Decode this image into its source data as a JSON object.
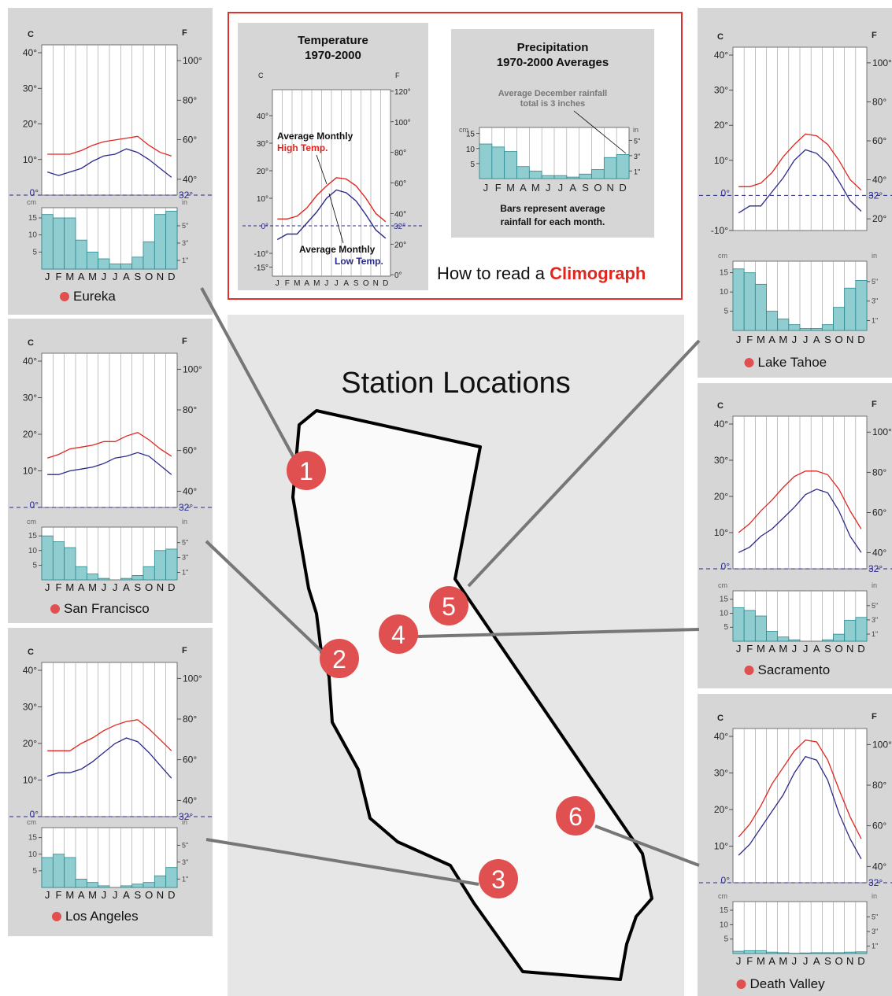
{
  "legend": {
    "label_c": "C",
    "label_f": "F",
    "label_cm": "cm",
    "label_in": "in",
    "freeze_c": "0°",
    "freeze_f": "32°",
    "c_ticks": [
      "-10°",
      "10°",
      "20°",
      "30°",
      "40°"
    ],
    "f_ticks": [
      "20°",
      "40°",
      "60°",
      "80°",
      "100°",
      "120°"
    ],
    "cm_ticks": [
      "5",
      "10",
      "15"
    ],
    "in_ticks": [
      "1\"",
      "3\"",
      "5\""
    ],
    "months": [
      "J",
      "F",
      "M",
      "A",
      "M",
      "J",
      "J",
      "A",
      "S",
      "O",
      "N",
      "D"
    ]
  },
  "colors": {
    "high": "#e0261e",
    "low": "#2a2a8a",
    "bars": "#8fcdd0",
    "bar_stroke": "#2a8a8f",
    "badge": "#e05050",
    "frame": "#e03030",
    "accent_text": "#e0261e"
  },
  "chart_data": [
    {
      "type": "line",
      "station": "Eureka",
      "number": "1",
      "series": [
        {
          "name": "High",
          "values": [
            11.5,
            11.5,
            11.5,
            12.5,
            14,
            15,
            15.5,
            16,
            16.5,
            14,
            12,
            11
          ]
        },
        {
          "name": "Low",
          "values": [
            6.5,
            5.5,
            6.5,
            7.5,
            9.5,
            11,
            11.5,
            13,
            12,
            10,
            7.5,
            5
          ]
        }
      ],
      "precip_cm": [
        16,
        15,
        15,
        8.5,
        5,
        3,
        1.5,
        1.5,
        3.5,
        8,
        16,
        17
      ],
      "ylim_c": [
        0,
        40
      ]
    },
    {
      "type": "line",
      "station": "San Francisco",
      "number": "2",
      "series": [
        {
          "name": "High",
          "values": [
            13.5,
            14.5,
            16,
            16.5,
            17,
            18,
            18,
            19.5,
            20.5,
            18.5,
            16,
            14
          ]
        },
        {
          "name": "Low",
          "values": [
            9,
            9,
            10,
            10.5,
            11,
            12,
            13.5,
            14,
            15,
            14,
            11.5,
            9
          ]
        }
      ],
      "precip_cm": [
        15,
        13,
        11,
        4.5,
        2,
        0.5,
        0,
        0.5,
        1.5,
        4.5,
        10,
        10.5
      ],
      "ylim_c": [
        0,
        40
      ]
    },
    {
      "type": "line",
      "station": "Los Angeles",
      "number": "3",
      "series": [
        {
          "name": "High",
          "values": [
            18,
            18,
            18,
            20,
            21.5,
            23.5,
            25,
            26,
            26.5,
            24,
            21,
            18
          ]
        },
        {
          "name": "Low",
          "values": [
            11,
            12,
            12,
            13,
            15,
            17.5,
            20,
            21.5,
            20.5,
            17.5,
            14,
            10.5
          ]
        }
      ],
      "precip_cm": [
        9,
        10,
        9,
        2.5,
        1.5,
        0.5,
        0,
        0.5,
        1,
        1.5,
        3.5,
        6
      ],
      "ylim_c": [
        0,
        40
      ]
    },
    {
      "type": "line",
      "station": "Sacramento",
      "number": "4",
      "series": [
        {
          "name": "High",
          "values": [
            10,
            12.5,
            16,
            19,
            22.5,
            25.5,
            27,
            27,
            26,
            22,
            16,
            11
          ]
        },
        {
          "name": "Low",
          "values": [
            4.5,
            6,
            9,
            11,
            14,
            17,
            20.5,
            22,
            21,
            16,
            9,
            4.5
          ]
        }
      ],
      "precip_cm": [
        12,
        11,
        9,
        3.5,
        1.5,
        0.5,
        0,
        0,
        0.5,
        2.5,
        7.5,
        8.5
      ],
      "ylim_c": [
        0,
        40
      ]
    },
    {
      "type": "line",
      "station": "Lake Tahoe",
      "number": "5",
      "series": [
        {
          "name": "High",
          "values": [
            2.5,
            2.5,
            3.5,
            6.5,
            11,
            14.5,
            17.5,
            17,
            14.5,
            10,
            4.5,
            1.5
          ]
        },
        {
          "name": "Low",
          "values": [
            -5,
            -3,
            -3,
            1,
            5,
            10,
            13,
            12,
            9,
            4,
            -1.5,
            -4.5
          ]
        }
      ],
      "precip_cm": [
        16,
        15,
        12,
        5,
        3,
        1.5,
        0.5,
        0.5,
        1.5,
        6,
        11,
        13
      ],
      "ylim_c": [
        -10,
        40
      ]
    },
    {
      "type": "line",
      "station": "Death Valley",
      "number": "6",
      "series": [
        {
          "name": "High",
          "values": [
            12.5,
            16,
            21,
            27,
            31.5,
            36,
            39,
            38.5,
            33.5,
            25.5,
            18,
            12
          ]
        },
        {
          "name": "Low",
          "values": [
            7.5,
            10.5,
            15,
            19.5,
            24,
            30,
            34.5,
            33.5,
            28,
            19,
            12,
            6.5
          ]
        }
      ],
      "precip_cm": [
        0.8,
        1,
        1,
        0.5,
        0.3,
        0.1,
        0.2,
        0.3,
        0.3,
        0.3,
        0.5,
        0.6
      ],
      "ylim_c": [
        0,
        40
      ]
    }
  ],
  "howto": {
    "temp_title_1": "Temperature",
    "temp_title_2": "1970-2000",
    "temp_c_ticks": [
      "-15°",
      "-10°",
      "0°",
      "10°",
      "20°",
      "30°",
      "40°"
    ],
    "temp_f_ticks": [
      "0°",
      "20°",
      "40°",
      "60°",
      "80°",
      "100°",
      "120°"
    ],
    "high_label_1": "Average Monthly",
    "high_label_2": "High Temp.",
    "low_label_1": "Average Monthly",
    "low_label_2": "Low Temp.",
    "precip_title_1": "Precipitation",
    "precip_title_2": "1970-2000 Averages",
    "callout_1": "Average December rainfall",
    "callout_2": "total is 3 inches",
    "bars_note_1": "Bars represent average",
    "bars_note_2": "rainfall for each month.",
    "footer_prefix": "How to read a",
    "footer_word": "Climograph",
    "sample_high": [
      2.5,
      2.5,
      3.5,
      6.5,
      11,
      14.5,
      17.5,
      17,
      14.5,
      10,
      4.5,
      1.5
    ],
    "sample_low": [
      -5,
      -3,
      -3,
      1,
      5,
      10,
      13,
      12,
      9,
      4,
      -1.5,
      -4.5
    ],
    "sample_precip": [
      11.5,
      10.5,
      9,
      4,
      2.5,
      1,
      1,
      0.5,
      1.5,
      3,
      7,
      8
    ]
  },
  "map": {
    "title": "Station Locations"
  }
}
